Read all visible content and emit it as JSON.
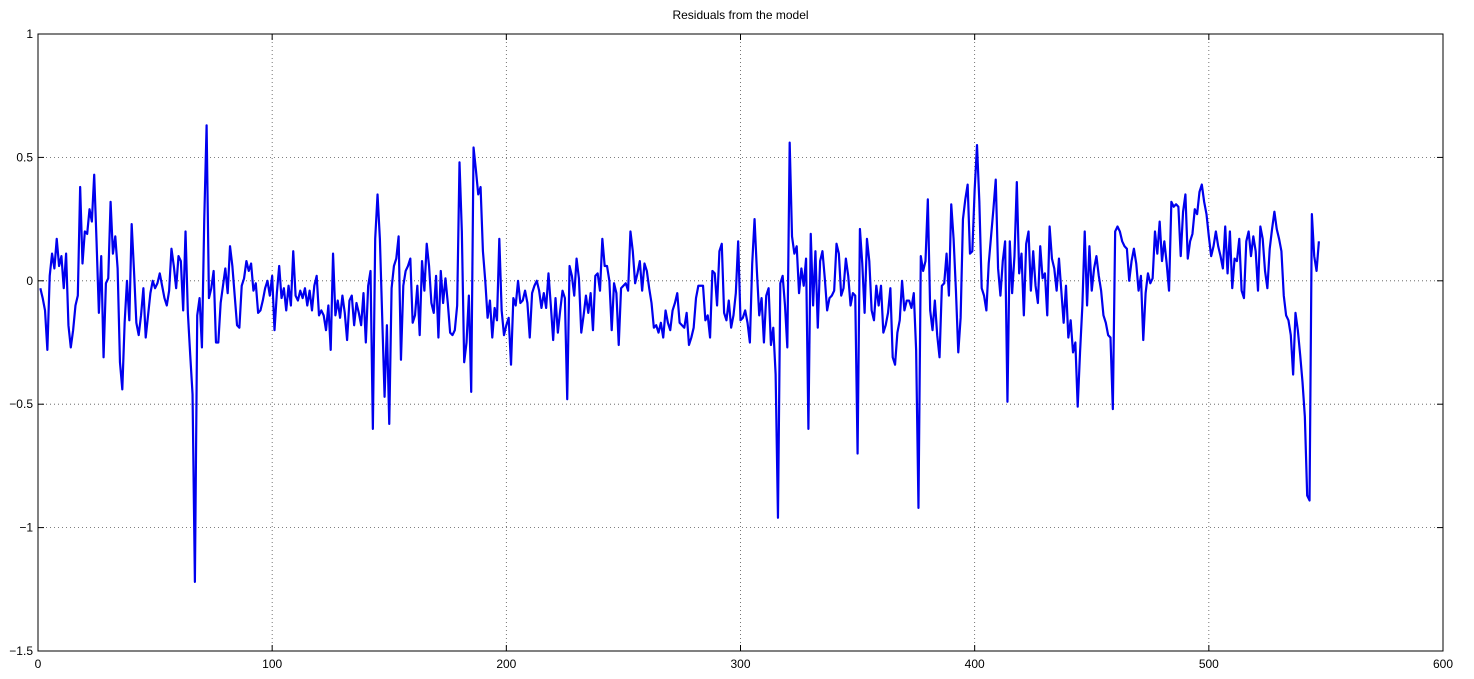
{
  "chart_data": {
    "type": "line",
    "title": "Residuals from the model",
    "xlabel": "",
    "ylabel": "",
    "xlim": [
      0,
      600
    ],
    "ylim": [
      -1.5,
      1
    ],
    "grid": true,
    "grid_style": "dotted",
    "line_color": "#0000ee",
    "xticks": [
      0,
      100,
      200,
      300,
      400,
      500,
      600
    ],
    "yticks": [
      -1.5,
      -1,
      -0.5,
      0,
      0.5,
      1
    ],
    "xtick_labels": [
      "0",
      "100",
      "200",
      "300",
      "400",
      "500",
      "600"
    ],
    "ytick_labels": [
      "−1.5",
      "−1",
      "−0.5",
      "0",
      "0.5",
      "1"
    ],
    "series": [
      {
        "x_start": 1,
        "x_step": 1,
        "values": [
          -0.03,
          -0.07,
          -0.12,
          -0.28,
          0.02,
          0.11,
          0.05,
          0.17,
          0.06,
          0.1,
          -0.03,
          0.11,
          -0.18,
          -0.27,
          -0.2,
          -0.1,
          -0.06,
          0.38,
          0.07,
          0.2,
          0.19,
          0.29,
          0.24,
          0.43,
          0.16,
          -0.13,
          0.1,
          -0.31,
          -0.01,
          0.01,
          0.32,
          0.11,
          0.18,
          0.05,
          -0.33,
          -0.44,
          -0.17,
          0.0,
          -0.16,
          0.23,
          0.04,
          -0.17,
          -0.22,
          -0.14,
          -0.03,
          -0.23,
          -0.14,
          -0.05,
          0.0,
          -0.03,
          -0.01,
          0.03,
          -0.02,
          -0.07,
          -0.1,
          -0.04,
          0.13,
          0.06,
          -0.03,
          0.1,
          0.08,
          -0.12,
          0.2,
          -0.13,
          -0.3,
          -0.46,
          -1.22,
          -0.14,
          -0.07,
          -0.27,
          0.25,
          0.63,
          -0.07,
          -0.03,
          0.04,
          -0.25,
          -0.25,
          -0.09,
          -0.02,
          0.05,
          -0.05,
          0.14,
          0.06,
          -0.06,
          -0.18,
          -0.19,
          -0.02,
          0.01,
          0.08,
          0.04,
          0.07,
          -0.04,
          -0.01,
          -0.13,
          -0.12,
          -0.08,
          -0.03,
          0.0,
          -0.06,
          0.02,
          -0.2,
          -0.05,
          0.06,
          -0.07,
          -0.03,
          -0.12,
          -0.02,
          -0.1,
          0.12,
          -0.06,
          -0.08,
          -0.04,
          -0.07,
          -0.03,
          -0.1,
          -0.04,
          -0.12,
          -0.02,
          0.02,
          -0.14,
          -0.12,
          -0.14,
          -0.2,
          -0.1,
          -0.28,
          0.11,
          -0.14,
          -0.08,
          -0.15,
          -0.06,
          -0.13,
          -0.24,
          -0.08,
          -0.06,
          -0.18,
          -0.09,
          -0.13,
          -0.18,
          -0.05,
          -0.25,
          -0.02,
          0.04,
          -0.6,
          0.17,
          0.35,
          0.17,
          -0.15,
          -0.47,
          -0.18,
          -0.58,
          -0.03,
          0.06,
          0.09,
          0.18,
          -0.32,
          -0.02,
          0.04,
          0.06,
          0.09,
          -0.17,
          -0.14,
          -0.02,
          -0.22,
          0.08,
          -0.04,
          0.15,
          0.06,
          -0.09,
          -0.13,
          0.02,
          -0.23,
          0.04,
          -0.09,
          0.01,
          -0.09,
          -0.21,
          -0.22,
          -0.2,
          -0.1,
          0.48,
          0.2,
          -0.33,
          -0.25,
          -0.06,
          -0.45,
          0.54,
          0.45,
          0.35,
          0.38,
          0.12,
          0.0,
          -0.15,
          -0.08,
          -0.23,
          -0.11,
          -0.16,
          0.17,
          -0.12,
          -0.22,
          -0.18,
          -0.15,
          -0.34,
          -0.07,
          -0.1,
          0.0,
          -0.09,
          -0.08,
          -0.04,
          -0.09,
          -0.23,
          -0.05,
          -0.02,
          0.0,
          -0.04,
          -0.11,
          -0.05,
          -0.11,
          0.03,
          -0.1,
          -0.24,
          -0.07,
          -0.21,
          -0.12,
          -0.04,
          -0.07,
          -0.48,
          0.06,
          0.02,
          -0.06,
          0.09,
          0.01,
          -0.21,
          -0.14,
          -0.06,
          -0.13,
          -0.05,
          -0.2,
          0.02,
          0.03,
          -0.04,
          0.17,
          0.06,
          0.06,
          0.0,
          -0.2,
          -0.01,
          -0.05,
          -0.26,
          -0.03,
          -0.02,
          -0.01,
          -0.04,
          0.2,
          0.12,
          -0.01,
          0.03,
          0.08,
          -0.04,
          0.07,
          0.04,
          -0.03,
          -0.09,
          -0.19,
          -0.18,
          -0.21,
          -0.17,
          -0.23,
          -0.12,
          -0.17,
          -0.2,
          -0.12,
          -0.09,
          -0.05,
          -0.17,
          -0.18,
          -0.19,
          -0.13,
          -0.26,
          -0.23,
          -0.19,
          -0.07,
          -0.02,
          -0.02,
          -0.02,
          -0.16,
          -0.14,
          -0.23,
          0.04,
          0.03,
          -0.1,
          0.12,
          0.15,
          -0.13,
          -0.16,
          -0.08,
          -0.19,
          -0.14,
          -0.05,
          0.16,
          -0.16,
          -0.15,
          -0.12,
          -0.17,
          -0.25,
          0.07,
          0.25,
          0.04,
          -0.14,
          -0.07,
          -0.25,
          -0.06,
          -0.03,
          -0.26,
          -0.19,
          -0.38,
          -0.96,
          -0.01,
          0.02,
          -0.1,
          -0.27,
          0.56,
          0.18,
          0.11,
          0.14,
          -0.05,
          0.05,
          -0.02,
          0.09,
          -0.6,
          0.19,
          -0.1,
          0.12,
          -0.19,
          0.08,
          0.12,
          0.01,
          -0.12,
          -0.07,
          -0.06,
          -0.04,
          0.15,
          0.11,
          -0.06,
          -0.03,
          0.09,
          0.02,
          -0.1,
          -0.05,
          -0.06,
          -0.7,
          0.21,
          0.07,
          -0.13,
          0.17,
          0.08,
          -0.12,
          -0.16,
          -0.02,
          -0.1,
          -0.02,
          -0.21,
          -0.18,
          -0.13,
          -0.03,
          -0.31,
          -0.34,
          -0.21,
          -0.16,
          0.0,
          -0.12,
          -0.08,
          -0.08,
          -0.11,
          -0.05,
          -0.28,
          -0.92,
          0.1,
          0.04,
          0.08,
          0.33,
          -0.12,
          -0.2,
          -0.08,
          -0.22,
          -0.31,
          -0.02,
          -0.01,
          0.11,
          -0.06,
          0.31,
          0.17,
          -0.04,
          -0.29,
          -0.15,
          0.25,
          0.33,
          0.39,
          0.11,
          0.12,
          0.37,
          0.55,
          0.32,
          -0.03,
          -0.06,
          -0.12,
          0.07,
          0.18,
          0.29,
          0.41,
          0.05,
          -0.06,
          0.08,
          0.16,
          -0.49,
          0.16,
          -0.05,
          0.1,
          0.4,
          0.03,
          0.11,
          -0.14,
          0.15,
          0.2,
          -0.04,
          0.12,
          -0.02,
          -0.09,
          0.14,
          0.01,
          0.03,
          -0.14,
          0.22,
          0.09,
          0.05,
          -0.04,
          0.09,
          -0.04,
          -0.17,
          -0.02,
          -0.23,
          -0.16,
          -0.29,
          -0.25,
          -0.51,
          -0.29,
          -0.1,
          0.2,
          -0.1,
          0.14,
          -0.04,
          0.05,
          0.1,
          0.02,
          -0.04,
          -0.14,
          -0.17,
          -0.22,
          -0.23,
          -0.52,
          0.2,
          0.22,
          0.2,
          0.16,
          0.14,
          0.13,
          0.0,
          0.08,
          0.13,
          0.07,
          -0.04,
          0.02,
          -0.24,
          -0.05,
          0.03,
          -0.01,
          0.01,
          0.2,
          0.11,
          0.24,
          0.08,
          0.16,
          0.07,
          -0.04,
          0.32,
          0.3,
          0.31,
          0.3,
          0.1,
          0.28,
          0.35,
          0.09,
          0.16,
          0.19,
          0.29,
          0.27,
          0.36,
          0.39,
          0.32,
          0.27,
          0.18,
          0.1,
          0.14,
          0.2,
          0.14,
          0.1,
          0.05,
          0.22,
          0.03,
          0.2,
          -0.03,
          0.09,
          0.08,
          0.17,
          -0.04,
          -0.07,
          0.16,
          0.2,
          0.1,
          0.18,
          0.12,
          -0.04,
          0.22,
          0.17,
          0.04,
          -0.03,
          0.13,
          0.21,
          0.28,
          0.21,
          0.17,
          0.12,
          -0.06,
          -0.14,
          -0.16,
          -0.22,
          -0.38,
          -0.13,
          -0.2,
          -0.3,
          -0.41,
          -0.55,
          -0.87,
          -0.89,
          0.27,
          0.1,
          0.04,
          0.16
        ]
      }
    ]
  }
}
